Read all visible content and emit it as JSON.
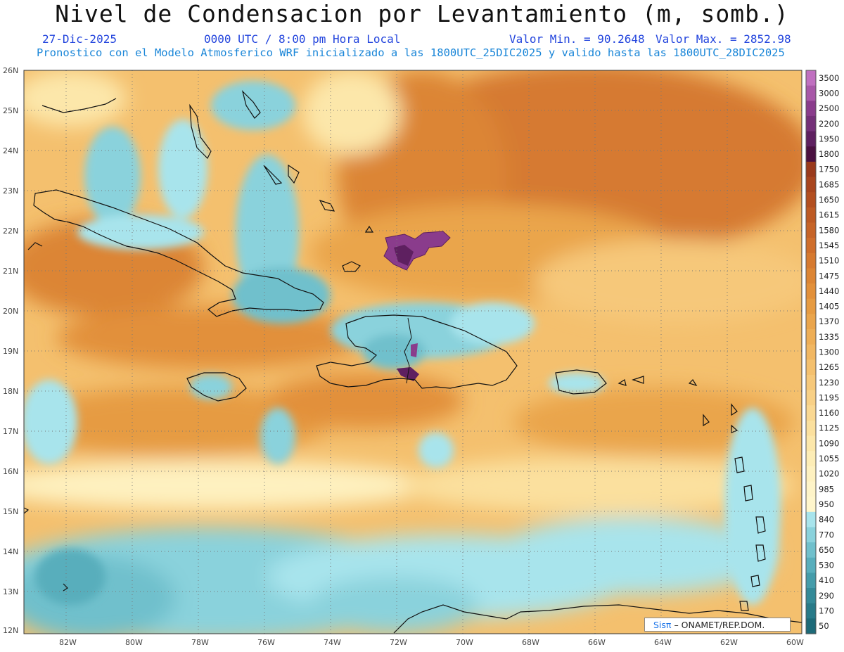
{
  "header": {
    "title": "Nivel de Condensacion por Levantamiento (m, somb.)",
    "date": "27-Dic-2025",
    "time": "0000 UTC / 8:00 pm Hora Local",
    "min_label": "Valor Min. = 90.2648",
    "max_label": "Valor Max. = 2852.98",
    "subtitle": "Pronostico con el Modelo Atmosferico WRF inicializado a las 1800UTC_25DIC2025 y valido hasta las  1800UTC_28DIC2025"
  },
  "map": {
    "lon_range": [
      -83.2,
      -60
    ],
    "lat_range": [
      12,
      26
    ],
    "lat_labels": [
      "26N",
      "25N",
      "24N",
      "23N",
      "22N",
      "21N",
      "20N",
      "19N",
      "18N",
      "17N",
      "16N",
      "15N",
      "14N",
      "13N",
      "12N"
    ],
    "lon_labels": [
      "82W",
      "80W",
      "78W",
      "76W",
      "74W",
      "72W",
      "70W",
      "68W",
      "66W",
      "64W",
      "62W",
      "60W"
    ]
  },
  "colorbar": {
    "labels": [
      "3500",
      "3000",
      "2500",
      "2200",
      "1950",
      "1800",
      "1750",
      "1685",
      "1650",
      "1615",
      "1580",
      "1545",
      "1510",
      "1475",
      "1440",
      "1405",
      "1370",
      "1335",
      "1300",
      "1265",
      "1230",
      "1195",
      "1160",
      "1125",
      "1090",
      "1055",
      "1020",
      "985",
      "950",
      "840",
      "770",
      "650",
      "530",
      "410",
      "290",
      "170",
      "50"
    ],
    "colors": [
      "#c070c0",
      "#a858a8",
      "#8a3c8c",
      "#743078",
      "#5e2060",
      "#4a1040",
      "#9a3a1c",
      "#a8451e",
      "#b34f20",
      "#bd5a24",
      "#c66428",
      "#cf6e2c",
      "#d67a30",
      "#dc8534",
      "#e2903a",
      "#e69b42",
      "#eaa54c",
      "#eeae56",
      "#f1b762",
      "#f4c06e",
      "#f6c87a",
      "#f8d086",
      "#fad892",
      "#fbe09e",
      "#fce7aa",
      "#fdedb6",
      "#fef1c0",
      "#fef4c8",
      "#fff6cc",
      "#a8e4ec",
      "#8ad2dc",
      "#70c0cc",
      "#58aebc",
      "#449caa",
      "#348a98",
      "#287a88",
      "#1d6a78"
    ]
  },
  "credit": {
    "brand": "Sisπ",
    "org": "– ONAMET/REP.DOM."
  }
}
